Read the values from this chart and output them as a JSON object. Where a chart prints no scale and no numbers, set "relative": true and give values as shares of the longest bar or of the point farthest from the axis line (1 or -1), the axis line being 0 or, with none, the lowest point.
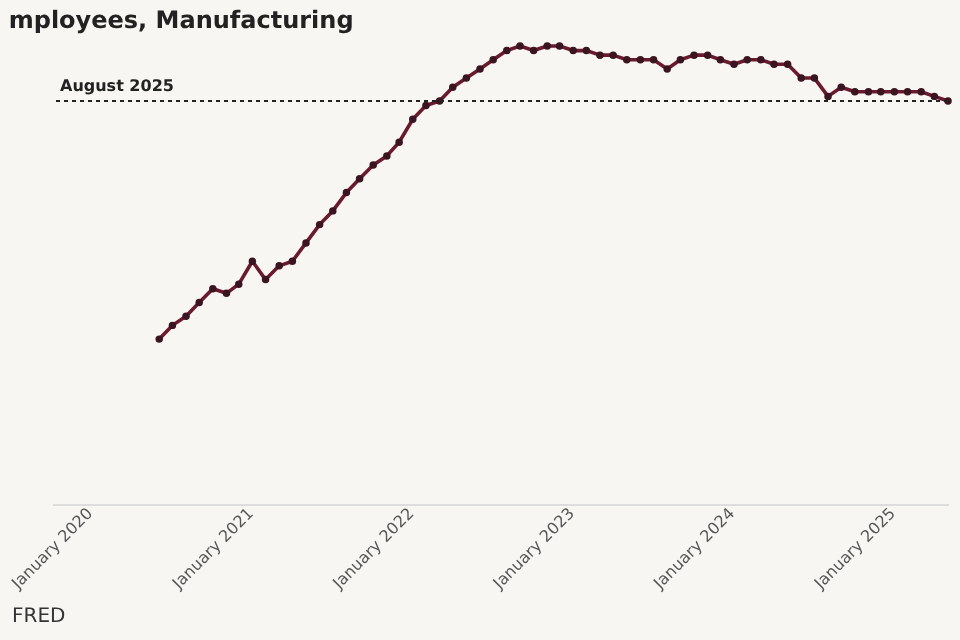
{
  "chart_data": {
    "type": "line",
    "title": "mployees, Manufacturing",
    "relative": true,
    "x": [
      "2020-09",
      "2020-10",
      "2020-11",
      "2020-12",
      "2021-01",
      "2021-02",
      "2021-03",
      "2021-04",
      "2021-05",
      "2021-06",
      "2021-07",
      "2021-08",
      "2021-09",
      "2021-10",
      "2021-11",
      "2021-12",
      "2022-01",
      "2022-02",
      "2022-03",
      "2022-04",
      "2022-05",
      "2022-06",
      "2022-07",
      "2022-08",
      "2022-09",
      "2022-10",
      "2022-11",
      "2022-12",
      "2023-01",
      "2023-02",
      "2023-03",
      "2023-04",
      "2023-05",
      "2023-06",
      "2023-07",
      "2023-08",
      "2023-09",
      "2023-10",
      "2023-11",
      "2023-12",
      "2024-01",
      "2024-02",
      "2024-03",
      "2024-04",
      "2024-05",
      "2024-06",
      "2024-07",
      "2024-08",
      "2024-09",
      "2024-10",
      "2024-11",
      "2024-12",
      "2025-01",
      "2025-02",
      "2025-03",
      "2025-04",
      "2025-05",
      "2025-06",
      "2025-07",
      "2025-08"
    ],
    "series": [
      {
        "color": "#6b1a2e",
        "values": [
          0.36,
          0.39,
          0.41,
          0.44,
          0.47,
          0.46,
          0.48,
          0.53,
          0.49,
          0.52,
          0.53,
          0.57,
          0.61,
          0.64,
          0.68,
          0.71,
          0.74,
          0.76,
          0.79,
          0.84,
          0.87,
          0.88,
          0.91,
          0.93,
          0.95,
          0.97,
          0.99,
          1,
          0.99,
          1,
          1,
          0.99,
          0.99,
          0.98,
          0.98,
          0.97,
          0.97,
          0.97,
          0.95,
          0.97,
          0.98,
          0.98,
          0.97,
          0.96,
          0.97,
          0.97,
          0.96,
          0.96,
          0.93,
          0.93,
          0.89,
          0.91,
          0.9,
          0.9,
          0.9,
          0.9,
          0.9,
          0.9,
          0.89,
          0.88
        ]
      }
    ],
    "xlim": [
      "2020-01",
      "2025-08"
    ],
    "xticks": [
      {
        "value": "2020-01",
        "label": "January 2020"
      },
      {
        "value": "2021-01",
        "label": "January 2021"
      },
      {
        "value": "2022-01",
        "label": "January 2022"
      },
      {
        "value": "2023-01",
        "label": "January 2023"
      },
      {
        "value": "2024-01",
        "label": "January 2024"
      },
      {
        "value": "2025-01",
        "label": "January 2025"
      }
    ],
    "ref_lines": [
      {
        "axis": "y",
        "value": 0.88,
        "label": "August 2025",
        "color": "#222222",
        "line_style": "dotted"
      }
    ],
    "marker": "circle",
    "line_style": "solid",
    "annotations": [
      "FRED"
    ]
  }
}
